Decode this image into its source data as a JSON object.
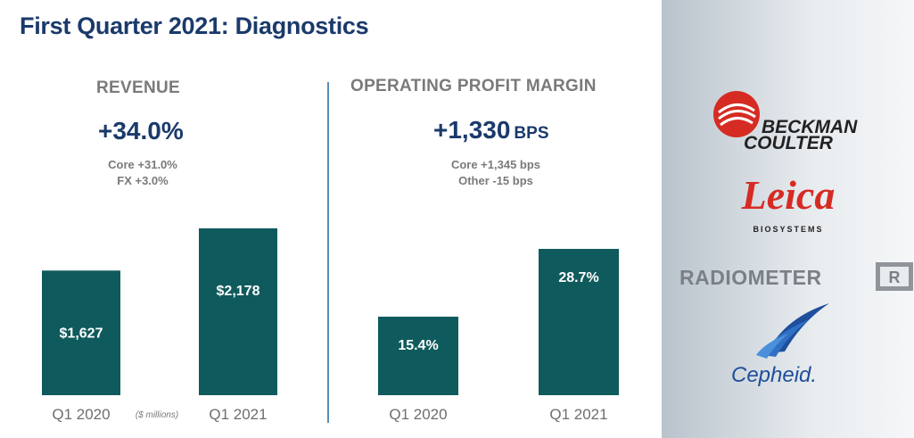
{
  "title": "First Quarter 2021: Diagnostics",
  "revenue": {
    "heading": "REVENUE",
    "headline": "+34.0%",
    "details": [
      "Core +31.0%",
      "FX +3.0%"
    ],
    "note": "($ millions)"
  },
  "margin": {
    "heading": "OPERATING PROFIT MARGIN",
    "headline": "+1,330",
    "headline_unit": "BPS",
    "details": [
      "Core +1,345 bps",
      "Other -15 bps"
    ]
  },
  "chart_data": [
    {
      "type": "bar",
      "title": "REVENUE",
      "categories": [
        "Q1 2020",
        "Q1 2021"
      ],
      "values": [
        1627,
        2178
      ],
      "value_labels": [
        "$1,627",
        "$2,178"
      ],
      "unit": "($ millions)",
      "color": "#0f5a5c"
    },
    {
      "type": "bar",
      "title": "OPERATING PROFIT MARGIN",
      "categories": [
        "Q1 2020",
        "Q1 2021"
      ],
      "values": [
        15.4,
        28.7
      ],
      "value_labels": [
        "15.4%",
        "28.7%"
      ],
      "color": "#0f5a5c"
    }
  ],
  "logos": {
    "beckman": [
      "BECKMAN",
      "COULTER"
    ],
    "leica": "Leica",
    "leica_sub": "BIOSYSTEMS",
    "radiometer": "RADIOMETER",
    "cepheid": "Cepheid."
  },
  "colors": {
    "title": "#1b3a6b",
    "bar": "#0f5a5c",
    "muted": "#7a7a7a",
    "beckman_red": "#d62b23",
    "radiometer_grey": "#7b8086",
    "cepheid_blue": "#1f4e9c"
  }
}
